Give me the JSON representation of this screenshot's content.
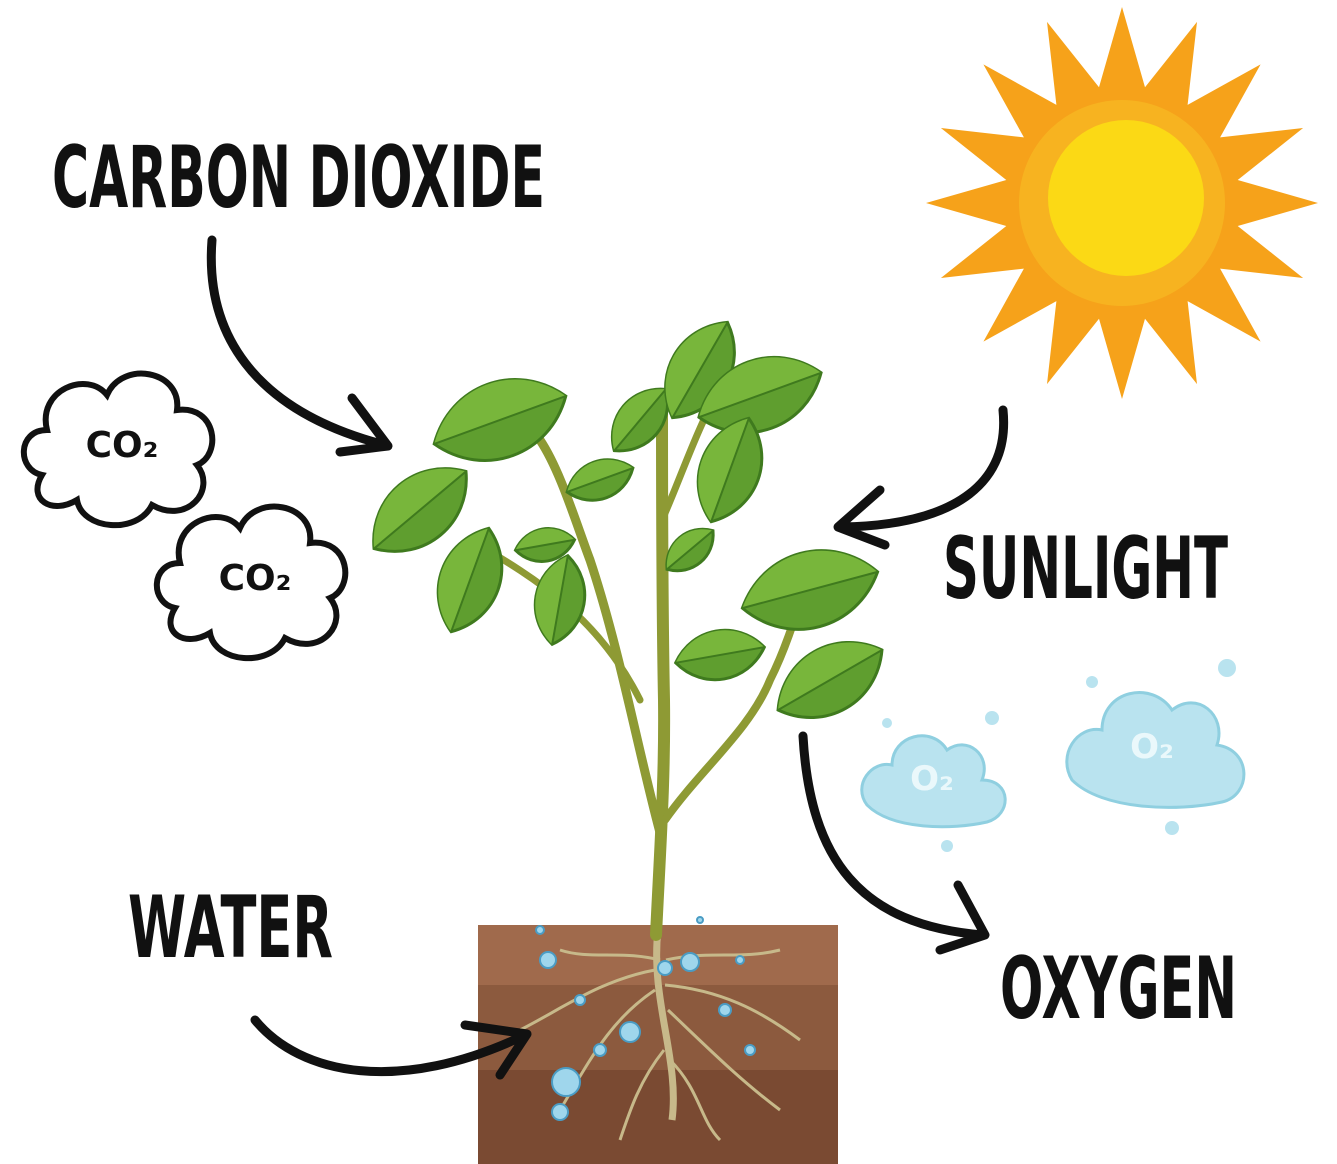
{
  "labels": {
    "carbon_dioxide": "CARBON DIOXIDE",
    "sunlight": "SUNLIGHT",
    "water": "WATER",
    "oxygen": "OXYGEN"
  },
  "clouds": [
    {
      "label": "CO₂"
    },
    {
      "label": "CO₂"
    },
    {
      "label": "O₂"
    },
    {
      "label": "O₂"
    }
  ]
}
